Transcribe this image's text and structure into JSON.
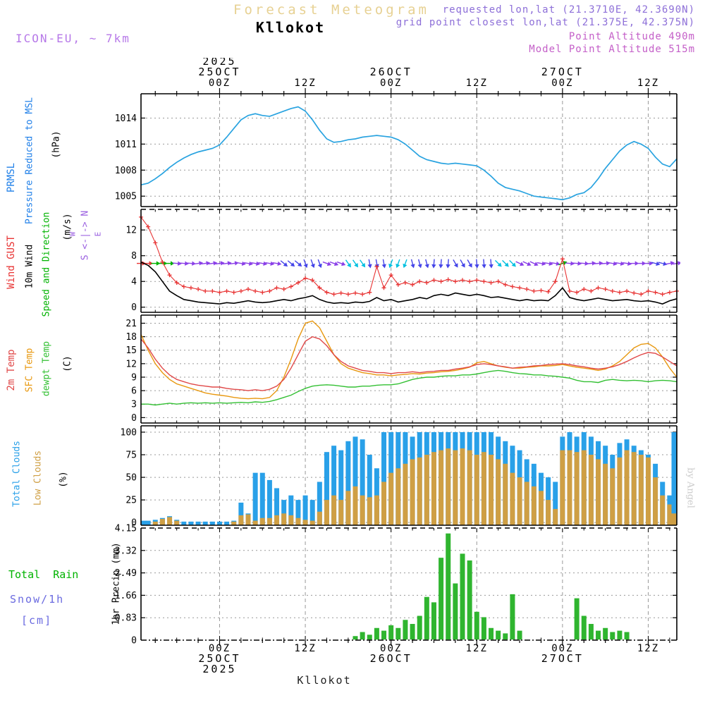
{
  "header": {
    "title": "Forecast Meteogram",
    "station": "Kllokot",
    "model": "ICON-EU, ~ 7km",
    "requested": "requested lon,lat (21.3710E, 42.3690N)",
    "grid_point": "grid point closest lon,lat (21.375E, 42.375N)",
    "point_altitude": "Point Altitude 490m",
    "model_altitude": "Model Point Altitude 515m"
  },
  "footer": {
    "station": "Kllokot"
  },
  "watermark": {
    "text": "by Angel"
  },
  "colors": {
    "title_tan": "#e7d193",
    "model_purple": "#b678e8",
    "request_purple": "#8d6fd8",
    "altitude_magenta": "#c45fc8",
    "prmsl": "#1f7fe8",
    "pressure_line": "#29a3e0",
    "gust_red": "#e83333",
    "wind_black": "#000000",
    "speed_dir_green": "#00b300",
    "compass_purple": "#9a5fe0",
    "t2m_red": "#e04848",
    "sfc_orange": "#e8980f",
    "dewpt_green": "#33c033",
    "total_clouds_blue": "#29a0e8",
    "low_clouds_tan": "#cf9f44",
    "precip_green": "#2fb52f",
    "snow_blue": "#6a6ae0",
    "watermark_gray": "#cccccc",
    "arrow_purple": "#8a3fe8",
    "arrow_blue": "#4444e8",
    "arrow_cyan": "#00c0e0"
  },
  "chart_data": {
    "type": "meteogram",
    "x_axis": {
      "n_points": 76,
      "minor_tick_every_hours": 3,
      "major_ticks": [
        {
          "idx": 11,
          "hour": "00Z",
          "day": "25OCT",
          "year": "2025"
        },
        {
          "idx": 23,
          "hour": "12Z"
        },
        {
          "idx": 35,
          "hour": "00Z",
          "day": "26OCT"
        },
        {
          "idx": 47,
          "hour": "12Z"
        },
        {
          "idx": 59,
          "hour": "00Z",
          "day": "27OCT"
        },
        {
          "idx": 71,
          "hour": "12Z"
        }
      ]
    },
    "pressure": {
      "type": "line",
      "labels": {
        "short": "PRMSL",
        "long": "Pressure Reduced to MSL",
        "unit": "(hPa)"
      },
      "yticks": [
        1005,
        1008,
        1011,
        1014
      ],
      "ytick_labels": [
        "1005",
        "1008",
        "1011",
        "1014"
      ],
      "values": [
        1006.3,
        1006.5,
        1007.0,
        1007.6,
        1008.3,
        1008.9,
        1009.4,
        1009.8,
        1010.1,
        1010.3,
        1010.5,
        1010.9,
        1011.8,
        1012.8,
        1013.8,
        1014.3,
        1014.5,
        1014.3,
        1014.2,
        1014.5,
        1014.8,
        1015.1,
        1015.3,
        1014.8,
        1013.8,
        1012.6,
        1011.6,
        1011.2,
        1011.3,
        1011.5,
        1011.6,
        1011.8,
        1011.9,
        1012.0,
        1011.9,
        1011.8,
        1011.5,
        1011.0,
        1010.3,
        1009.6,
        1009.2,
        1009.0,
        1008.8,
        1008.7,
        1008.8,
        1008.7,
        1008.6,
        1008.5,
        1008.0,
        1007.3,
        1006.5,
        1006.0,
        1005.8,
        1005.6,
        1005.3,
        1005.0,
        1004.9,
        1004.8,
        1004.7,
        1004.6,
        1004.8,
        1005.2,
        1005.4,
        1006.0,
        1007.0,
        1008.2,
        1009.2,
        1010.2,
        1010.9,
        1011.3,
        1011.0,
        1010.5,
        1009.5,
        1008.7,
        1008.4,
        1009.3
      ]
    },
    "wind": {
      "type": "line+vectors",
      "labels": {
        "gust": "Wind GUST",
        "wind10m": "10m Wind",
        "speed_dir": "Speed and Direction",
        "unit": "(m/s)"
      },
      "compass": {
        "ns": "S <-|-> N",
        "w": "W",
        "e": "E"
      },
      "yticks": [
        0,
        4,
        8,
        12
      ],
      "ytick_labels": [
        "0",
        "4",
        "8",
        "12"
      ],
      "gust": [
        14.0,
        12.5,
        10.0,
        7.0,
        5.0,
        3.8,
        3.2,
        3.0,
        2.8,
        2.5,
        2.5,
        2.3,
        2.5,
        2.3,
        2.5,
        2.8,
        2.5,
        2.3,
        2.5,
        3.0,
        2.8,
        3.2,
        3.8,
        4.5,
        4.2,
        3.0,
        2.3,
        2.0,
        2.2,
        2.0,
        2.2,
        2.0,
        2.3,
        6.3,
        3.0,
        5.0,
        3.5,
        3.8,
        3.5,
        4.0,
        3.8,
        4.2,
        4.0,
        4.3,
        4.0,
        4.2,
        4.0,
        4.2,
        4.0,
        3.8,
        4.0,
        3.5,
        3.2,
        3.0,
        2.8,
        2.5,
        2.6,
        2.4,
        4.0,
        7.5,
        2.5,
        2.3,
        2.8,
        2.5,
        3.0,
        2.8,
        2.5,
        2.3,
        2.5,
        2.2,
        2.0,
        2.5,
        2.3,
        2.0,
        2.3,
        2.5
      ],
      "speed": [
        7.0,
        6.5,
        5.5,
        4.0,
        2.5,
        1.8,
        1.2,
        1.0,
        0.8,
        0.7,
        0.6,
        0.5,
        0.7,
        0.6,
        0.8,
        1.0,
        0.8,
        0.7,
        0.8,
        1.0,
        1.2,
        1.0,
        1.3,
        1.5,
        1.8,
        1.2,
        0.8,
        0.6,
        0.7,
        0.6,
        0.8,
        0.7,
        0.9,
        1.5,
        1.0,
        1.2,
        0.8,
        1.0,
        1.2,
        1.5,
        1.3,
        1.8,
        2.0,
        1.8,
        2.2,
        2.0,
        1.8,
        2.0,
        1.8,
        1.5,
        1.6,
        1.4,
        1.2,
        1.0,
        1.2,
        1.0,
        1.1,
        1.0,
        1.8,
        3.0,
        1.5,
        1.2,
        1.0,
        1.2,
        1.4,
        1.2,
        1.0,
        1.1,
        1.2,
        1.0,
        0.9,
        1.0,
        0.8,
        0.5,
        1.0,
        1.3
      ],
      "arrow_dir_deg": [
        0,
        0,
        0,
        0,
        0,
        5,
        5,
        5,
        -8,
        -8,
        -8,
        -8,
        -8,
        -8,
        10,
        10,
        10,
        10,
        10,
        10,
        40,
        40,
        40,
        70,
        70,
        70,
        20,
        20,
        20,
        55,
        55,
        55,
        80,
        80,
        80,
        110,
        110,
        110,
        75,
        75,
        75,
        95,
        95,
        95,
        60,
        60,
        60,
        85,
        85,
        85,
        45,
        45,
        45,
        25,
        25,
        25,
        10,
        10,
        10,
        -20,
        5,
        5,
        5,
        -5,
        -5,
        -5,
        10,
        10,
        10,
        0,
        0,
        0,
        15,
        15,
        -10,
        -10
      ],
      "arrow_colors": [
        "r",
        "r",
        "g",
        "g",
        "g",
        "p",
        "p",
        "p",
        "p",
        "p",
        "p",
        "p",
        "p",
        "p",
        "p",
        "p",
        "p",
        "p",
        "p",
        "p",
        "b",
        "b",
        "b",
        "b",
        "b",
        "b",
        "p",
        "p",
        "p",
        "c",
        "c",
        "c",
        "b",
        "b",
        "b",
        "c",
        "c",
        "c",
        "b",
        "b",
        "b",
        "b",
        "b",
        "b",
        "b",
        "b",
        "b",
        "b",
        "b",
        "b",
        "c",
        "c",
        "c",
        "p",
        "p",
        "p",
        "p",
        "p",
        "p",
        "g",
        "p",
        "p",
        "p",
        "p",
        "p",
        "p",
        "p",
        "p",
        "p",
        "p",
        "p",
        "p",
        "b",
        "b",
        "p",
        "p"
      ]
    },
    "temperature": {
      "type": "line",
      "labels": {
        "t2m": "2m Temp",
        "sfc": "SFC Temp",
        "dewpt": "dewpt Temp",
        "unit": "(C)"
      },
      "yticks": [
        0,
        3,
        6,
        9,
        12,
        15,
        18,
        21
      ],
      "ytick_labels": [
        "0",
        "3",
        "6",
        "9",
        "12",
        "15",
        "18",
        "21"
      ],
      "t2m": [
        17.5,
        15.5,
        13.0,
        11.0,
        9.5,
        8.5,
        8.0,
        7.5,
        7.2,
        7.0,
        6.8,
        6.8,
        6.5,
        6.3,
        6.2,
        6.0,
        6.2,
        6.0,
        6.3,
        7.0,
        8.5,
        11.0,
        14.0,
        17.0,
        18.0,
        17.5,
        16.0,
        14.0,
        12.5,
        11.5,
        11.0,
        10.5,
        10.3,
        10.0,
        10.0,
        9.8,
        10.0,
        10.0,
        10.2,
        10.0,
        10.2,
        10.3,
        10.5,
        10.5,
        10.8,
        11.0,
        11.3,
        11.8,
        12.0,
        11.8,
        11.5,
        11.3,
        11.0,
        11.2,
        11.3,
        11.5,
        11.6,
        11.8,
        11.9,
        12.0,
        11.8,
        11.5,
        11.3,
        11.0,
        10.8,
        11.0,
        11.3,
        11.8,
        12.5,
        13.3,
        14.0,
        14.5,
        14.3,
        13.5,
        12.5,
        11.5
      ],
      "sfc": [
        18.5,
        15.0,
        12.0,
        10.0,
        8.5,
        7.5,
        7.0,
        6.5,
        6.0,
        5.5,
        5.2,
        5.0,
        4.8,
        4.5,
        4.3,
        4.2,
        4.3,
        4.2,
        4.5,
        6.0,
        9.0,
        13.0,
        17.5,
        21.0,
        21.5,
        20.0,
        17.0,
        14.0,
        12.0,
        11.0,
        10.5,
        10.0,
        9.8,
        9.5,
        9.5,
        9.3,
        9.5,
        9.6,
        9.8,
        9.7,
        9.9,
        10.0,
        10.2,
        10.3,
        10.5,
        10.8,
        11.2,
        12.2,
        12.5,
        12.0,
        11.5,
        11.2,
        11.0,
        11.0,
        11.2,
        11.3,
        11.5,
        11.5,
        11.6,
        11.8,
        11.5,
        11.2,
        11.0,
        10.8,
        10.5,
        10.8,
        11.5,
        12.5,
        14.0,
        15.5,
        16.3,
        16.5,
        15.5,
        13.5,
        11.0,
        9.0
      ],
      "dewpt": [
        3.0,
        3.0,
        2.8,
        3.0,
        3.2,
        3.0,
        3.2,
        3.3,
        3.2,
        3.3,
        3.2,
        3.3,
        3.2,
        3.3,
        3.4,
        3.3,
        3.5,
        3.4,
        3.6,
        4.0,
        4.5,
        5.0,
        5.8,
        6.5,
        7.0,
        7.2,
        7.3,
        7.2,
        7.0,
        6.8,
        6.8,
        7.0,
        7.0,
        7.2,
        7.3,
        7.3,
        7.5,
        8.0,
        8.5,
        8.8,
        9.0,
        9.0,
        9.2,
        9.3,
        9.3,
        9.5,
        9.5,
        9.7,
        10.0,
        10.3,
        10.5,
        10.3,
        10.0,
        9.8,
        9.7,
        9.5,
        9.5,
        9.3,
        9.2,
        9.0,
        8.8,
        8.3,
        8.0,
        8.0,
        7.8,
        8.3,
        8.5,
        8.3,
        8.2,
        8.3,
        8.2,
        8.0,
        8.2,
        8.3,
        8.2,
        8.0
      ]
    },
    "clouds": {
      "type": "bar",
      "labels": {
        "total": "Total Clouds",
        "low": "Low Clouds",
        "unit": "(%)"
      },
      "yticks": [
        0,
        25,
        50,
        75,
        100
      ],
      "ytick_labels": [
        "0",
        "25",
        "50",
        "75",
        "100"
      ],
      "total": [
        2,
        2,
        3,
        5,
        7,
        3,
        1,
        1,
        1,
        1,
        1,
        1,
        1,
        2,
        22,
        10,
        55,
        55,
        47,
        38,
        25,
        30,
        25,
        30,
        25,
        45,
        78,
        85,
        80,
        90,
        95,
        92,
        75,
        60,
        100,
        100,
        100,
        100,
        95,
        100,
        100,
        100,
        100,
        100,
        100,
        100,
        100,
        100,
        100,
        100,
        95,
        90,
        85,
        80,
        70,
        65,
        55,
        50,
        45,
        95,
        100,
        95,
        100,
        95,
        90,
        85,
        75,
        88,
        92,
        85,
        80,
        75,
        65,
        45,
        30,
        100
      ],
      "low": [
        0,
        0,
        1,
        4,
        6,
        2,
        0,
        0,
        0,
        0,
        0,
        0,
        0,
        1,
        8,
        9,
        2,
        5,
        5,
        8,
        10,
        8,
        5,
        3,
        2,
        12,
        25,
        30,
        25,
        35,
        40,
        30,
        28,
        30,
        45,
        55,
        60,
        65,
        70,
        72,
        75,
        78,
        80,
        82,
        80,
        82,
        80,
        75,
        78,
        75,
        70,
        65,
        55,
        50,
        45,
        40,
        35,
        25,
        15,
        80,
        80,
        78,
        80,
        75,
        70,
        65,
        60,
        72,
        80,
        78,
        75,
        72,
        50,
        30,
        20,
        10
      ]
    },
    "precip": {
      "type": "bar",
      "labels": {
        "rain": "Total  Rain",
        "snow": "Snow/1h",
        "cm": "[cm]",
        "unit": "1hr Precip (mm)"
      },
      "yticks": [
        0,
        0.83,
        1.66,
        2.49,
        3.32,
        4.15
      ],
      "ytick_labels": [
        "0",
        "0.83",
        "1.66",
        "2.49",
        "3.32",
        "4.15"
      ],
      "values": [
        0,
        0,
        0,
        0,
        0,
        0,
        0,
        0,
        0,
        0,
        0,
        0,
        0,
        0,
        0,
        0,
        0,
        0,
        0,
        0,
        0,
        0,
        0,
        0,
        0,
        0,
        0,
        0,
        0,
        0,
        0.15,
        0.3,
        0.2,
        0.45,
        0.35,
        0.55,
        0.45,
        0.75,
        0.6,
        0.9,
        1.6,
        1.4,
        3.05,
        3.95,
        2.1,
        3.2,
        2.95,
        1.05,
        0.85,
        0.45,
        0.35,
        0.25,
        1.7,
        0.35,
        0,
        0,
        0,
        0,
        0,
        0,
        0,
        1.55,
        0.9,
        0.6,
        0.35,
        0.45,
        0.3,
        0.35,
        0.3,
        0,
        0,
        0,
        0,
        0,
        0,
        0
      ]
    }
  }
}
